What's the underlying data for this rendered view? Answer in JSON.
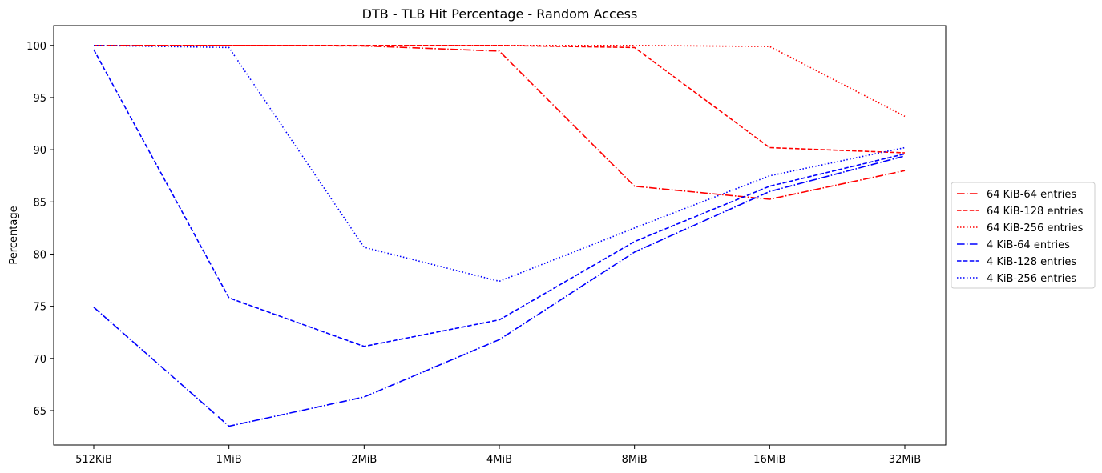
{
  "chart_data": {
    "type": "line",
    "title": "DTB - TLB Hit Percentage - Random Access",
    "xlabel": "",
    "ylabel": "Percentage",
    "categories": [
      "512KiB",
      "1MiB",
      "2MiB",
      "4MiB",
      "8MiB",
      "16MiB",
      "32MiB"
    ],
    "ylim": [
      61.7,
      101.9
    ],
    "yticks": [
      65,
      70,
      75,
      80,
      85,
      90,
      95,
      100
    ],
    "grid": false,
    "legend_position": "center-right",
    "series": [
      {
        "name": "64 KiB-64 entries",
        "color": "#ff0000",
        "style": "dashdot",
        "values": [
          100.0,
          100.0,
          99.95,
          99.45,
          86.5,
          85.25,
          88.0
        ]
      },
      {
        "name": "64 KiB-128 entries",
        "color": "#ff0000",
        "style": "dashed",
        "values": [
          100.0,
          100.0,
          100.0,
          100.0,
          99.8,
          90.2,
          89.7
        ]
      },
      {
        "name": "64 KiB-256 entries",
        "color": "#ff0000",
        "style": "dotted",
        "values": [
          100.0,
          100.0,
          100.0,
          100.0,
          100.0,
          99.9,
          93.2
        ]
      },
      {
        "name": "4 KiB-64 entries",
        "color": "#0000ff",
        "style": "dashdot",
        "values": [
          74.9,
          63.5,
          66.3,
          71.8,
          80.2,
          86.0,
          89.4
        ]
      },
      {
        "name": "4 KiB-128 entries",
        "color": "#0000ff",
        "style": "dashed",
        "values": [
          99.6,
          75.8,
          71.15,
          73.7,
          81.2,
          86.5,
          89.6
        ]
      },
      {
        "name": "4 KiB-256 entries",
        "color": "#0000ff",
        "style": "dotted",
        "values": [
          100.0,
          99.8,
          80.65,
          77.4,
          82.5,
          87.5,
          90.2
        ]
      }
    ]
  }
}
